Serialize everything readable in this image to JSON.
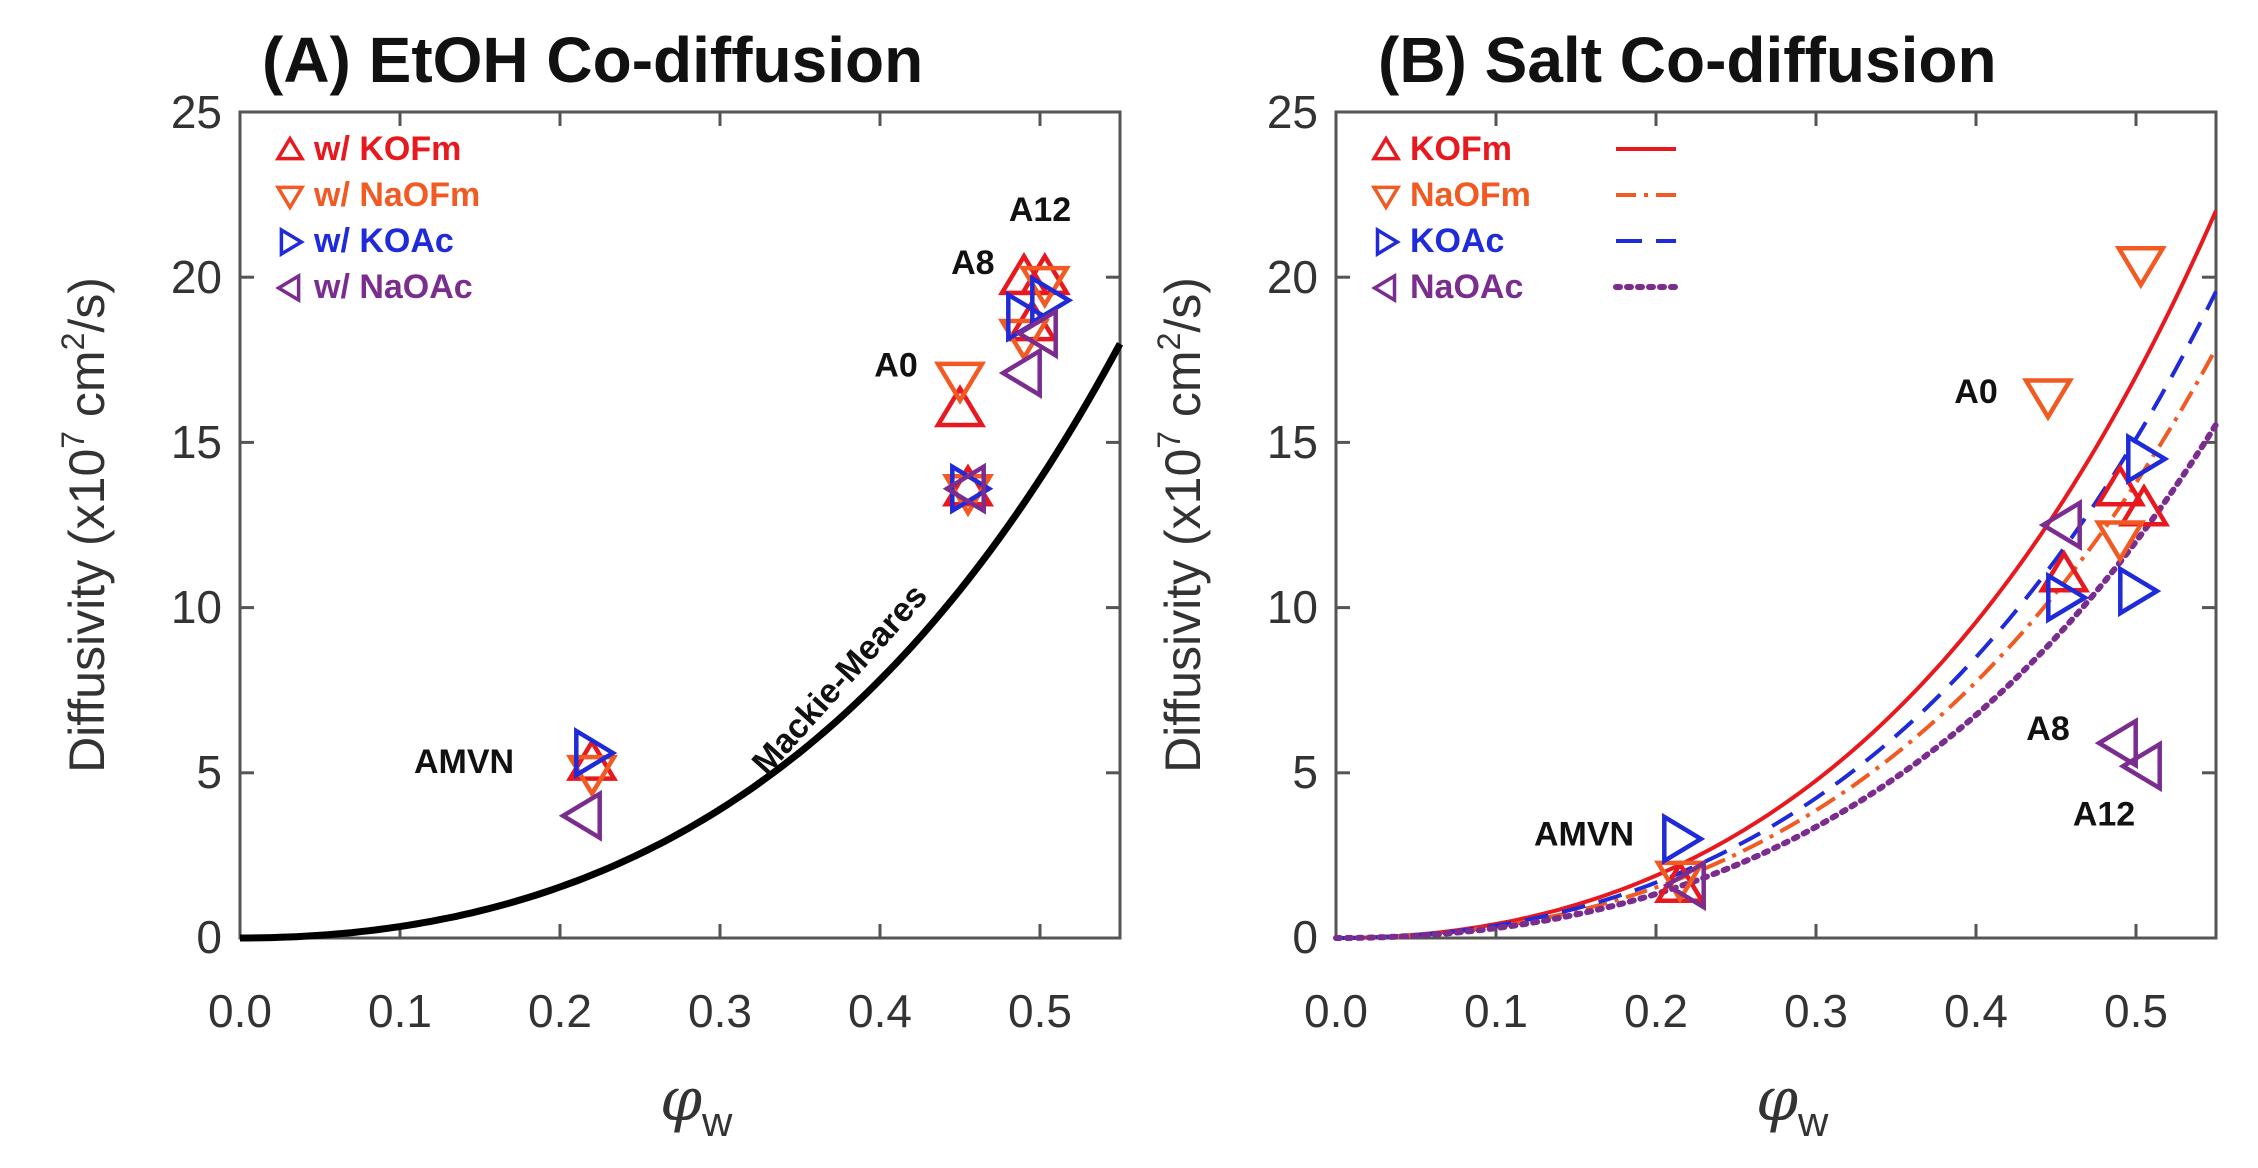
{
  "chart_data": [
    {
      "type": "scatter",
      "panel": "A",
      "title": "(A) EtOH Co-diffusion",
      "xlabel": "φ",
      "xlabel_sub": "w",
      "ylabel": "Diffusivity (x10",
      "ylabel_exp": "7",
      "ylabel_unit": " cm",
      "ylabel_unit_exp": "2",
      "ylabel_tail": "/s)",
      "xlim": [
        0,
        0.55
      ],
      "ylim": [
        0,
        25
      ],
      "x_ticks": [
        "0.0",
        "0.1",
        "0.2",
        "0.3",
        "0.4",
        "0.5"
      ],
      "y_ticks": [
        "0",
        "5",
        "10",
        "15",
        "20",
        "25"
      ],
      "legend_position": "top-left",
      "series": [
        {
          "name": "w/ KOFm",
          "marker": "triangle-up",
          "color": "#e8191e",
          "points": [
            [
              0.22,
              5.3
            ],
            [
              0.45,
              16.0
            ],
            [
              0.455,
              13.6
            ],
            [
              0.49,
              20.0
            ],
            [
              0.503,
              20.0
            ],
            [
              0.495,
              18.6
            ]
          ]
        },
        {
          "name": "w/ NaOFm",
          "marker": "triangle-down",
          "color": "#f15a22",
          "points": [
            [
              0.22,
              5.0
            ],
            [
              0.45,
              16.9
            ],
            [
              0.455,
              13.5
            ],
            [
              0.49,
              18.2
            ],
            [
              0.503,
              19.8
            ]
          ]
        },
        {
          "name": "w/ KOAc",
          "marker": "triangle-right",
          "color": "#1f2ad8",
          "points": [
            [
              0.22,
              5.6
            ],
            [
              0.455,
              13.6
            ],
            [
              0.49,
              18.8
            ],
            [
              0.505,
              19.3
            ]
          ]
        },
        {
          "name": "w/ NaOAc",
          "marker": "triangle-left",
          "color": "#7b2c8f",
          "points": [
            [
              0.215,
              3.7
            ],
            [
              0.455,
              13.6
            ],
            [
              0.49,
              17.1
            ],
            [
              0.5,
              18.3
            ]
          ]
        }
      ],
      "curve": {
        "name": "Mackie-Meares",
        "color": "#000000",
        "model": "((1-(1-x))/(1+(1-x)))^2 * D0",
        "D0": 125,
        "x_range": [
          0,
          0.55
        ]
      },
      "annotations": [
        {
          "text": "AMVN",
          "x": 0.14,
          "y": 5.0
        },
        {
          "text": "A0",
          "x": 0.41,
          "y": 17.0
        },
        {
          "text": "A8",
          "x": 0.458,
          "y": 20.1
        },
        {
          "text": "A12",
          "x": 0.5,
          "y": 21.7
        },
        {
          "text": "Mackie-Meares",
          "x": 0.38,
          "y": 7.6,
          "rotation": -48
        }
      ]
    },
    {
      "type": "scatter",
      "panel": "B",
      "title": "(B) Salt Co-diffusion",
      "xlabel": "φ",
      "xlabel_sub": "w",
      "ylabel": "Diffusivity (x10",
      "ylabel_exp": "7",
      "ylabel_unit": " cm",
      "ylabel_unit_exp": "2",
      "ylabel_tail": "/s)",
      "xlim": [
        0,
        0.55
      ],
      "ylim": [
        0,
        25
      ],
      "x_ticks": [
        "0.0",
        "0.1",
        "0.2",
        "0.3",
        "0.4",
        "0.5"
      ],
      "y_ticks": [
        "0",
        "5",
        "10",
        "15",
        "20",
        "25"
      ],
      "legend_position": "top-left",
      "series": [
        {
          "name": "KOFm",
          "marker": "triangle-up",
          "color": "#e8191e",
          "line": "solid",
          "D0": 153,
          "points": [
            [
              0.215,
              1.6
            ],
            [
              0.455,
              11.0
            ],
            [
              0.49,
              13.6
            ],
            [
              0.505,
              13.0
            ]
          ]
        },
        {
          "name": "NaOFm",
          "marker": "triangle-down",
          "color": "#f15a22",
          "line": "dash-dot",
          "D0": 124,
          "points": [
            [
              0.215,
              1.8
            ],
            [
              0.445,
              16.4
            ],
            [
              0.49,
              12.1
            ],
            [
              0.503,
              20.4
            ]
          ]
        },
        {
          "name": "KOAc",
          "marker": "triangle-right",
          "color": "#1f2ad8",
          "line": "dashed",
          "D0": 136,
          "points": [
            [
              0.215,
              3.0
            ],
            [
              0.455,
              10.3
            ],
            [
              0.5,
              10.5
            ],
            [
              0.505,
              14.5
            ]
          ]
        },
        {
          "name": "NaOAc",
          "marker": "triangle-left",
          "color": "#7b2c8f",
          "line": "dotted",
          "D0": 108,
          "points": [
            [
              0.22,
              1.6
            ],
            [
              0.455,
              12.5
            ],
            [
              0.49,
              5.9
            ],
            [
              0.505,
              5.2
            ]
          ]
        }
      ],
      "annotations": [
        {
          "text": "AMVN",
          "x": 0.155,
          "y": 2.8
        },
        {
          "text": "A0",
          "x": 0.4,
          "y": 16.2
        },
        {
          "text": "A8",
          "x": 0.445,
          "y": 6.0
        },
        {
          "text": "A12",
          "x": 0.48,
          "y": 3.4
        }
      ]
    }
  ]
}
